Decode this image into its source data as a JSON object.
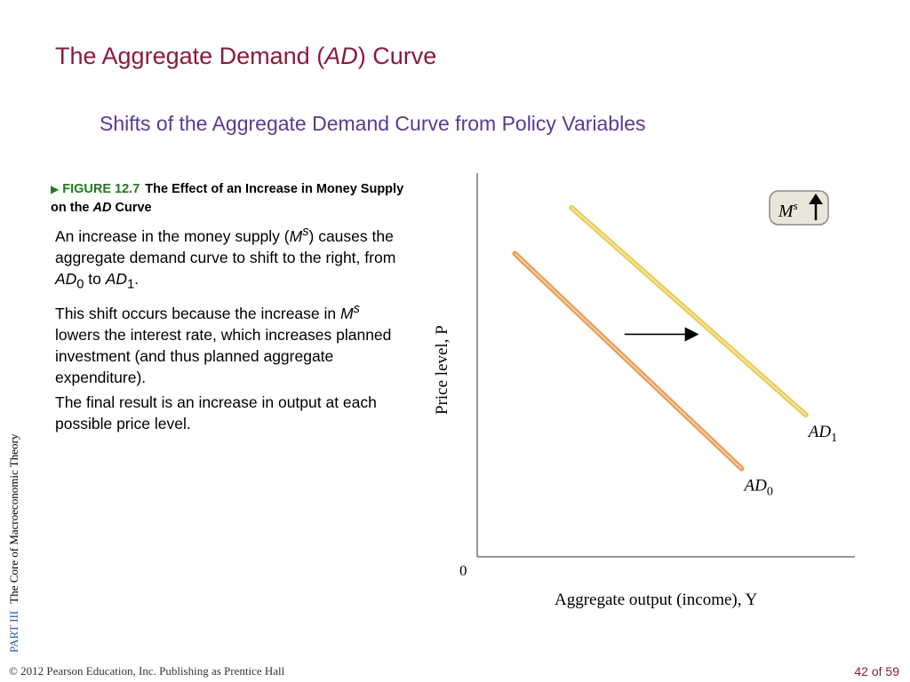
{
  "slide": {
    "title_pre": "The Aggregate Demand (",
    "title_em": "AD",
    "title_post": ") Curve",
    "subtitle": "Shifts of the Aggregate Demand Curve from Policy Variables"
  },
  "figure": {
    "number": "FIGURE 12.7",
    "caption_a": "The Effect of an Increase in Money Supply on the ",
    "caption_em": "AD",
    "caption_b": " Curve"
  },
  "body": {
    "p1": {
      "a": "An increase in the money supply (",
      "m": "M",
      "s": "s",
      "b": ") causes the aggregate demand curve to shift to the right, from ",
      "ad0": "AD",
      "sub0": "0",
      "to": " to ",
      "ad1": "AD",
      "sub1": "1",
      "end": "."
    },
    "p2": {
      "a": "This shift occurs because the increase in ",
      "m": "M",
      "s": "s",
      "b": " lowers the interest rate, which increases planned investment (and thus planned aggregate expenditure)."
    },
    "p3": "The final result is an increase in output at each possible price level."
  },
  "side_label": {
    "part": "PART  III",
    "text": "The Core of Macroeconomic Theory"
  },
  "footer": {
    "copyright": "© 2012 Pearson Education, Inc. Publishing as Prentice Hall",
    "page": "42 of 59"
  },
  "chart_data": {
    "type": "line",
    "xlabel": "Aggregate output (income), Y",
    "ylabel": "Price level, P",
    "origin_label": "0",
    "xlim": [
      0,
      10
    ],
    "ylim": [
      0,
      10
    ],
    "grid": false,
    "series": [
      {
        "name": "AD0",
        "label_main": "AD",
        "label_sub": "0",
        "color": "#E8944A",
        "x": [
          1,
          7
        ],
        "y": [
          7.9,
          2.3
        ]
      },
      {
        "name": "AD1",
        "label_main": "AD",
        "label_sub": "1",
        "color": "#E8C84A",
        "x": [
          2.5,
          8.7
        ],
        "y": [
          9.1,
          3.7
        ]
      }
    ],
    "shift_arrow": {
      "from": [
        3.9,
        5.8
      ],
      "to": [
        5.8,
        5.8
      ],
      "direction": "right"
    },
    "badge": {
      "main": "M",
      "sup": "s",
      "arrow": "up"
    }
  }
}
